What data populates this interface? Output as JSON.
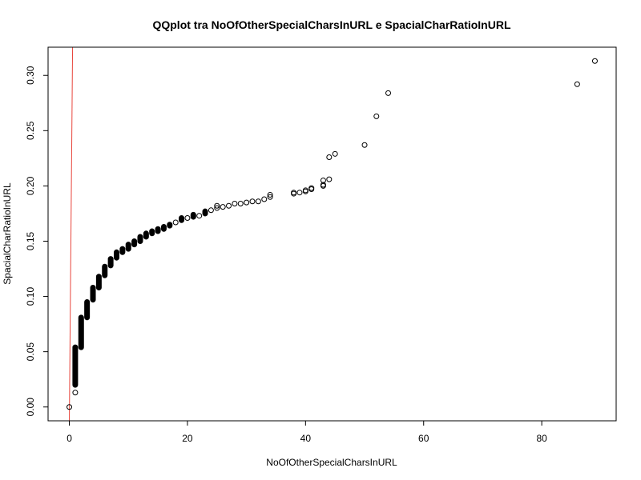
{
  "chart_data": {
    "type": "scatter",
    "title": "QQplot tra NoOfOtherSpecialCharsInURL e SpacialCharRatioInURL",
    "xlabel": "NoOfOtherSpecialCharsInURL",
    "ylabel": "SpacialCharRatioInURL",
    "xlim": [
      -3.6,
      92.6
    ],
    "ylim": [
      -0.0125,
      0.3255
    ],
    "x_ticks": [
      0,
      20,
      40,
      60,
      80
    ],
    "x_tick_labels": [
      "0",
      "20",
      "40",
      "60",
      "80"
    ],
    "y_ticks": [
      0.0,
      0.05,
      0.1,
      0.15,
      0.2,
      0.25,
      0.3
    ],
    "y_tick_labels": [
      "0.00",
      "0.05",
      "0.10",
      "0.15",
      "0.20",
      "0.25",
      "0.30"
    ],
    "grid": false,
    "reference_line": {
      "color": "#e8453c",
      "points": [
        [
          0.0,
          -0.0125
        ],
        [
          0.55,
          0.3255
        ]
      ]
    },
    "series": [
      {
        "marker": "open-circle",
        "color": "#000000",
        "vertical_runs": [
          {
            "x": 1,
            "y_from": 0.02,
            "y_to": 0.054
          },
          {
            "x": 2,
            "y_from": 0.054,
            "y_to": 0.081
          },
          {
            "x": 3,
            "y_from": 0.081,
            "y_to": 0.095
          },
          {
            "x": 4,
            "y_from": 0.097,
            "y_to": 0.108
          },
          {
            "x": 5,
            "y_from": 0.108,
            "y_to": 0.118
          },
          {
            "x": 6,
            "y_from": 0.119,
            "y_to": 0.127
          },
          {
            "x": 7,
            "y_from": 0.128,
            "y_to": 0.134
          },
          {
            "x": 8,
            "y_from": 0.135,
            "y_to": 0.14
          },
          {
            "x": 9,
            "y_from": 0.14,
            "y_to": 0.143
          },
          {
            "x": 10,
            "y_from": 0.143,
            "y_to": 0.147
          },
          {
            "x": 11,
            "y_from": 0.147,
            "y_to": 0.15
          },
          {
            "x": 12,
            "y_from": 0.15,
            "y_to": 0.154
          },
          {
            "x": 13,
            "y_from": 0.154,
            "y_to": 0.157
          },
          {
            "x": 14,
            "y_from": 0.157,
            "y_to": 0.159
          },
          {
            "x": 15,
            "y_from": 0.159,
            "y_to": 0.161
          },
          {
            "x": 16,
            "y_from": 0.161,
            "y_to": 0.163
          },
          {
            "x": 17,
            "y_from": 0.164,
            "y_to": 0.165
          },
          {
            "x": 19,
            "y_from": 0.169,
            "y_to": 0.171
          },
          {
            "x": 21,
            "y_from": 0.172,
            "y_to": 0.174
          },
          {
            "x": 23,
            "y_from": 0.175,
            "y_to": 0.177
          }
        ],
        "points": [
          [
            0,
            0.0
          ],
          [
            1,
            0.013
          ],
          [
            18,
            0.167
          ],
          [
            20,
            0.171
          ],
          [
            22,
            0.173
          ],
          [
            24,
            0.178
          ],
          [
            25,
            0.18
          ],
          [
            25,
            0.182
          ],
          [
            26,
            0.181
          ],
          [
            27,
            0.182
          ],
          [
            28,
            0.184
          ],
          [
            29,
            0.184
          ],
          [
            30,
            0.185
          ],
          [
            31,
            0.186
          ],
          [
            32,
            0.186
          ],
          [
            33,
            0.188
          ],
          [
            34,
            0.19
          ],
          [
            34,
            0.192
          ],
          [
            38,
            0.193
          ],
          [
            38,
            0.194
          ],
          [
            39,
            0.194
          ],
          [
            40,
            0.195
          ],
          [
            40,
            0.196
          ],
          [
            41,
            0.197
          ],
          [
            41,
            0.198
          ],
          [
            43,
            0.2
          ],
          [
            43,
            0.201
          ],
          [
            43,
            0.205
          ],
          [
            44,
            0.206
          ],
          [
            44,
            0.226
          ],
          [
            45,
            0.229
          ],
          [
            50,
            0.237
          ],
          [
            52,
            0.263
          ],
          [
            54,
            0.284
          ],
          [
            86,
            0.292
          ],
          [
            89,
            0.313
          ]
        ]
      }
    ]
  }
}
